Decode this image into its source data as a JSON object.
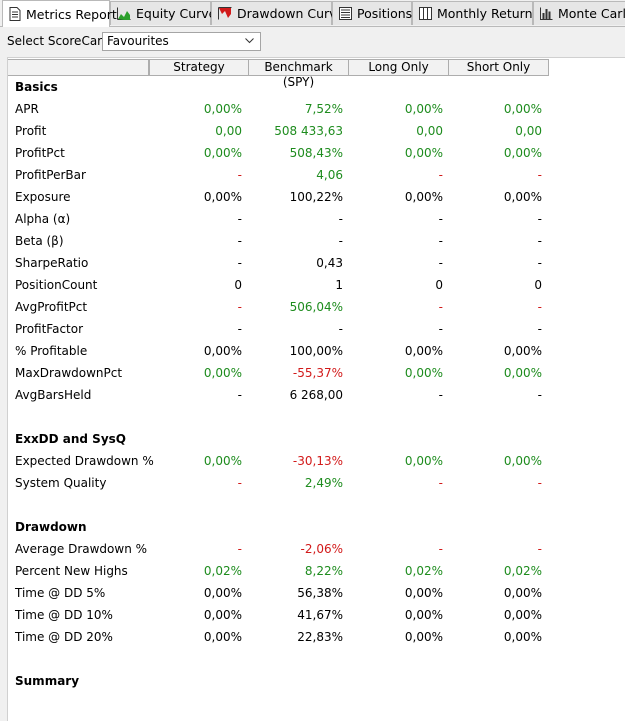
{
  "tabs": [
    {
      "label": "Metrics Report",
      "icon": "document-icon"
    },
    {
      "label": "Equity Curve",
      "icon": "area-chart-icon"
    },
    {
      "label": "Drawdown Curve",
      "icon": "drawdown-icon"
    },
    {
      "label": "Positions",
      "icon": "list-icon"
    },
    {
      "label": "Monthly Returns",
      "icon": "calendar-icon"
    },
    {
      "label": "Monte Carlo",
      "icon": "bar-chart-icon"
    }
  ],
  "scorecard": {
    "label": "Select ScoreCard:",
    "value": "Favourites"
  },
  "columns": [
    "Strategy",
    "Benchmark (SPY)",
    "Long Only",
    "Short Only"
  ],
  "colors": {
    "positive": "#1e8c1e",
    "negative": "#d21a1a",
    "neutral": "#000000"
  },
  "rows": [
    {
      "type": "section",
      "label": "Basics"
    },
    {
      "type": "metric",
      "label": "APR",
      "values": [
        "0,00%",
        "7,52%",
        "0,00%",
        "0,00%"
      ],
      "colors": [
        "g",
        "g",
        "g",
        "g"
      ]
    },
    {
      "type": "metric",
      "label": "Profit",
      "values": [
        "0,00",
        "508 433,63",
        "0,00",
        "0,00"
      ],
      "colors": [
        "g",
        "g",
        "g",
        "g"
      ]
    },
    {
      "type": "metric",
      "label": "ProfitPct",
      "values": [
        "0,00%",
        "508,43%",
        "0,00%",
        "0,00%"
      ],
      "colors": [
        "g",
        "g",
        "g",
        "g"
      ]
    },
    {
      "type": "metric",
      "label": "ProfitPerBar",
      "values": [
        "-",
        "4,06",
        "-",
        "-"
      ],
      "colors": [
        "r",
        "g",
        "r",
        "r"
      ]
    },
    {
      "type": "metric",
      "label": "Exposure",
      "values": [
        "0,00%",
        "100,22%",
        "0,00%",
        "0,00%"
      ],
      "colors": [
        "k",
        "k",
        "k",
        "k"
      ]
    },
    {
      "type": "metric",
      "label": "Alpha (α)",
      "values": [
        "-",
        "-",
        "-",
        "-"
      ],
      "colors": [
        "k",
        "k",
        "k",
        "k"
      ]
    },
    {
      "type": "metric",
      "label": "Beta (β)",
      "values": [
        "-",
        "-",
        "-",
        "-"
      ],
      "colors": [
        "k",
        "k",
        "k",
        "k"
      ]
    },
    {
      "type": "metric",
      "label": "SharpeRatio",
      "values": [
        "-",
        "0,43",
        "-",
        "-"
      ],
      "colors": [
        "k",
        "k",
        "k",
        "k"
      ]
    },
    {
      "type": "metric",
      "label": "PositionCount",
      "values": [
        "0",
        "1",
        "0",
        "0"
      ],
      "colors": [
        "k",
        "k",
        "k",
        "k"
      ]
    },
    {
      "type": "metric",
      "label": "AvgProfitPct",
      "values": [
        "-",
        "506,04%",
        "-",
        "-"
      ],
      "colors": [
        "r",
        "g",
        "r",
        "r"
      ]
    },
    {
      "type": "metric",
      "label": "ProfitFactor",
      "values": [
        "-",
        "-",
        "-",
        "-"
      ],
      "colors": [
        "k",
        "k",
        "k",
        "k"
      ]
    },
    {
      "type": "metric",
      "label": "% Profitable",
      "values": [
        "0,00%",
        "100,00%",
        "0,00%",
        "0,00%"
      ],
      "colors": [
        "k",
        "k",
        "k",
        "k"
      ]
    },
    {
      "type": "metric",
      "label": "MaxDrawdownPct",
      "values": [
        "0,00%",
        "-55,37%",
        "0,00%",
        "0,00%"
      ],
      "colors": [
        "g",
        "r",
        "g",
        "g"
      ]
    },
    {
      "type": "metric",
      "label": "AvgBarsHeld",
      "values": [
        "-",
        "6 268,00",
        "-",
        "-"
      ],
      "colors": [
        "k",
        "k",
        "k",
        "k"
      ]
    },
    {
      "type": "blank"
    },
    {
      "type": "section",
      "label": "ExxDD and SysQ"
    },
    {
      "type": "metric",
      "label": "Expected Drawdown %",
      "values": [
        "0,00%",
        "-30,13%",
        "0,00%",
        "0,00%"
      ],
      "colors": [
        "g",
        "r",
        "g",
        "g"
      ]
    },
    {
      "type": "metric",
      "label": "System Quality",
      "values": [
        "-",
        "2,49%",
        "-",
        "-"
      ],
      "colors": [
        "r",
        "g",
        "r",
        "r"
      ]
    },
    {
      "type": "blank"
    },
    {
      "type": "section",
      "label": "Drawdown"
    },
    {
      "type": "metric",
      "label": "Average Drawdown %",
      "values": [
        "-",
        "-2,06%",
        "-",
        "-"
      ],
      "colors": [
        "r",
        "r",
        "r",
        "r"
      ]
    },
    {
      "type": "metric",
      "label": "Percent New Highs",
      "values": [
        "0,02%",
        "8,22%",
        "0,02%",
        "0,02%"
      ],
      "colors": [
        "g",
        "g",
        "g",
        "g"
      ]
    },
    {
      "type": "metric",
      "label": "Time @ DD 5%",
      "values": [
        "0,00%",
        "56,38%",
        "0,00%",
        "0,00%"
      ],
      "colors": [
        "k",
        "k",
        "k",
        "k"
      ]
    },
    {
      "type": "metric",
      "label": "Time @ DD 10%",
      "values": [
        "0,00%",
        "41,67%",
        "0,00%",
        "0,00%"
      ],
      "colors": [
        "k",
        "k",
        "k",
        "k"
      ]
    },
    {
      "type": "metric",
      "label": "Time @ DD 20%",
      "values": [
        "0,00%",
        "22,83%",
        "0,00%",
        "0,00%"
      ],
      "colors": [
        "k",
        "k",
        "k",
        "k"
      ]
    },
    {
      "type": "blank"
    },
    {
      "type": "section",
      "label": "Summary"
    }
  ]
}
